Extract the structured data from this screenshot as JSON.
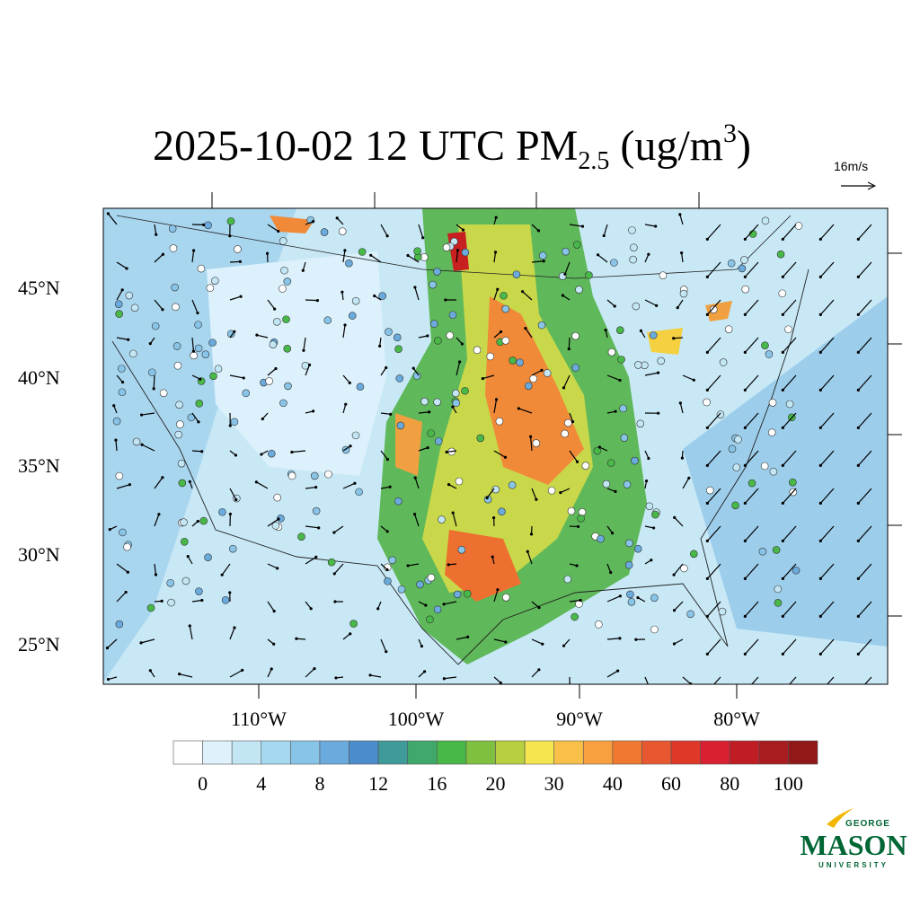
{
  "title": {
    "main": "2025-10-02 12 UTC PM",
    "sub": "2.5",
    "mid": " (ug/m",
    "sup": "3",
    "end": ")"
  },
  "vector_reference": "16m/s",
  "lat_labels": [
    "45°N",
    "40°N",
    "35°N",
    "30°N",
    "25°N"
  ],
  "lon_labels": [
    "110°W",
    "100°W",
    "90°W",
    "80°W"
  ],
  "colorbar": {
    "colors": [
      "#ffffff",
      "#dff2fb",
      "#c3e6f5",
      "#a6d8f0",
      "#88c4e8",
      "#6aaadc",
      "#4b8ccb",
      "#3f9a9a",
      "#3fa86a",
      "#48b848",
      "#80c040",
      "#b8d040",
      "#f5e650",
      "#f8c048",
      "#f8a040",
      "#f07830",
      "#e85830",
      "#e03828",
      "#d82030",
      "#c01c24",
      "#a81c20",
      "#901818"
    ],
    "labels": [
      0,
      4,
      8,
      12,
      16,
      20,
      30,
      40,
      60,
      80,
      100
    ]
  },
  "logo": {
    "top": "GEORGE",
    "main": "MASON",
    "bottom": "UNIVERSITY"
  }
}
